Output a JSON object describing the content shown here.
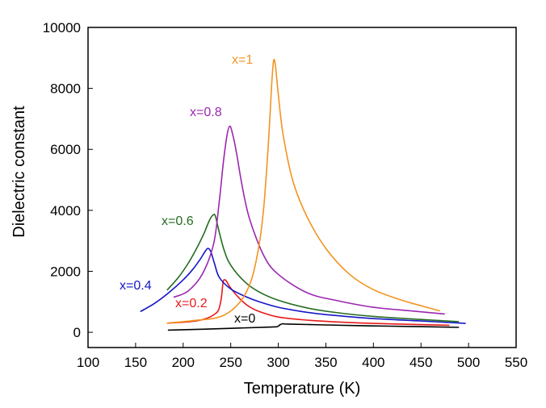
{
  "chart_data": {
    "type": "line",
    "title": "",
    "xlabel": "Temperature (K)",
    "ylabel": "Dielectric constant",
    "xlim": [
      100,
      550
    ],
    "ylim": [
      -500,
      10000
    ],
    "xticks": [
      100,
      150,
      200,
      250,
      300,
      350,
      400,
      450,
      500,
      550
    ],
    "xtick_labels": [
      "100",
      "150",
      "200",
      "250",
      "300",
      "350",
      "400",
      "450",
      "500",
      "550"
    ],
    "yticks": [
      0,
      2000,
      4000,
      6000,
      8000,
      10000
    ],
    "ytick_labels": [
      "0",
      "2000",
      "4000",
      "6000",
      "8000",
      "10000"
    ],
    "grid": false,
    "legend": "inline labels",
    "series": [
      {
        "name": "x=0",
        "label_text": "x=0",
        "color": "#000000",
        "x": [
          184,
          220,
          260,
          290,
          298,
          300,
          302,
          305,
          310,
          350,
          400,
          450,
          490
        ],
        "y": [
          70,
          100,
          140,
          170,
          180,
          200,
          250,
          280,
          270,
          240,
          210,
          185,
          160
        ]
      },
      {
        "name": "x=0.2",
        "label_text": "x=0.2",
        "color": "#e8191b",
        "x": [
          183,
          200,
          215,
          225,
          232,
          237,
          240,
          242,
          244,
          246,
          250,
          258,
          268,
          280,
          300,
          330,
          360,
          400,
          440,
          480
        ],
        "y": [
          300,
          330,
          380,
          460,
          570,
          720,
          1100,
          1650,
          1720,
          1650,
          1450,
          1150,
          870,
          680,
          500,
          400,
          340,
          290,
          260,
          230
        ]
      },
      {
        "name": "x=0.4",
        "label_text": "x=0.4",
        "color": "#1515c8",
        "x": [
          155,
          170,
          185,
          200,
          210,
          218,
          223,
          226,
          229,
          233,
          238,
          250,
          265,
          280,
          300,
          325,
          350,
          400,
          450,
          497
        ],
        "y": [
          680,
          950,
          1300,
          1720,
          2060,
          2400,
          2650,
          2750,
          2650,
          2250,
          1800,
          1420,
          1180,
          1000,
          820,
          680,
          580,
          450,
          370,
          290
        ]
      },
      {
        "name": "x=0.6",
        "label_text": "x=0.6",
        "color": "#236b1f",
        "x": [
          183,
          195,
          205,
          215,
          222,
          228,
          232,
          234,
          237,
          243,
          250,
          265,
          280,
          300,
          330,
          360,
          400,
          450,
          490
        ],
        "y": [
          1380,
          1800,
          2250,
          2800,
          3250,
          3700,
          3860,
          3800,
          3400,
          2700,
          2200,
          1650,
          1320,
          1050,
          800,
          650,
          520,
          420,
          350
        ]
      },
      {
        "name": "x=0.8",
        "label_text": "x=0.8",
        "color": "#9b27b0",
        "x": [
          190,
          205,
          220,
          232,
          238,
          242,
          246,
          249,
          252,
          256,
          262,
          270,
          285,
          300,
          330,
          360,
          400,
          440,
          475
        ],
        "y": [
          1150,
          1350,
          1900,
          2900,
          4300,
          5500,
          6450,
          6760,
          6500,
          5900,
          4800,
          3700,
          2500,
          1900,
          1300,
          1050,
          820,
          700,
          600
        ]
      },
      {
        "name": "x=1",
        "label_text": "x=1",
        "color": "#f39321",
        "x": [
          183,
          210,
          240,
          260,
          272,
          280,
          285,
          290,
          293,
          295,
          297,
          300,
          305,
          315,
          330,
          350,
          375,
          400,
          430,
          470
        ],
        "y": [
          300,
          380,
          520,
          1000,
          1750,
          2900,
          4200,
          6400,
          8100,
          8900,
          8750,
          7800,
          6500,
          5000,
          3800,
          2750,
          1900,
          1400,
          1050,
          700
        ]
      }
    ]
  }
}
